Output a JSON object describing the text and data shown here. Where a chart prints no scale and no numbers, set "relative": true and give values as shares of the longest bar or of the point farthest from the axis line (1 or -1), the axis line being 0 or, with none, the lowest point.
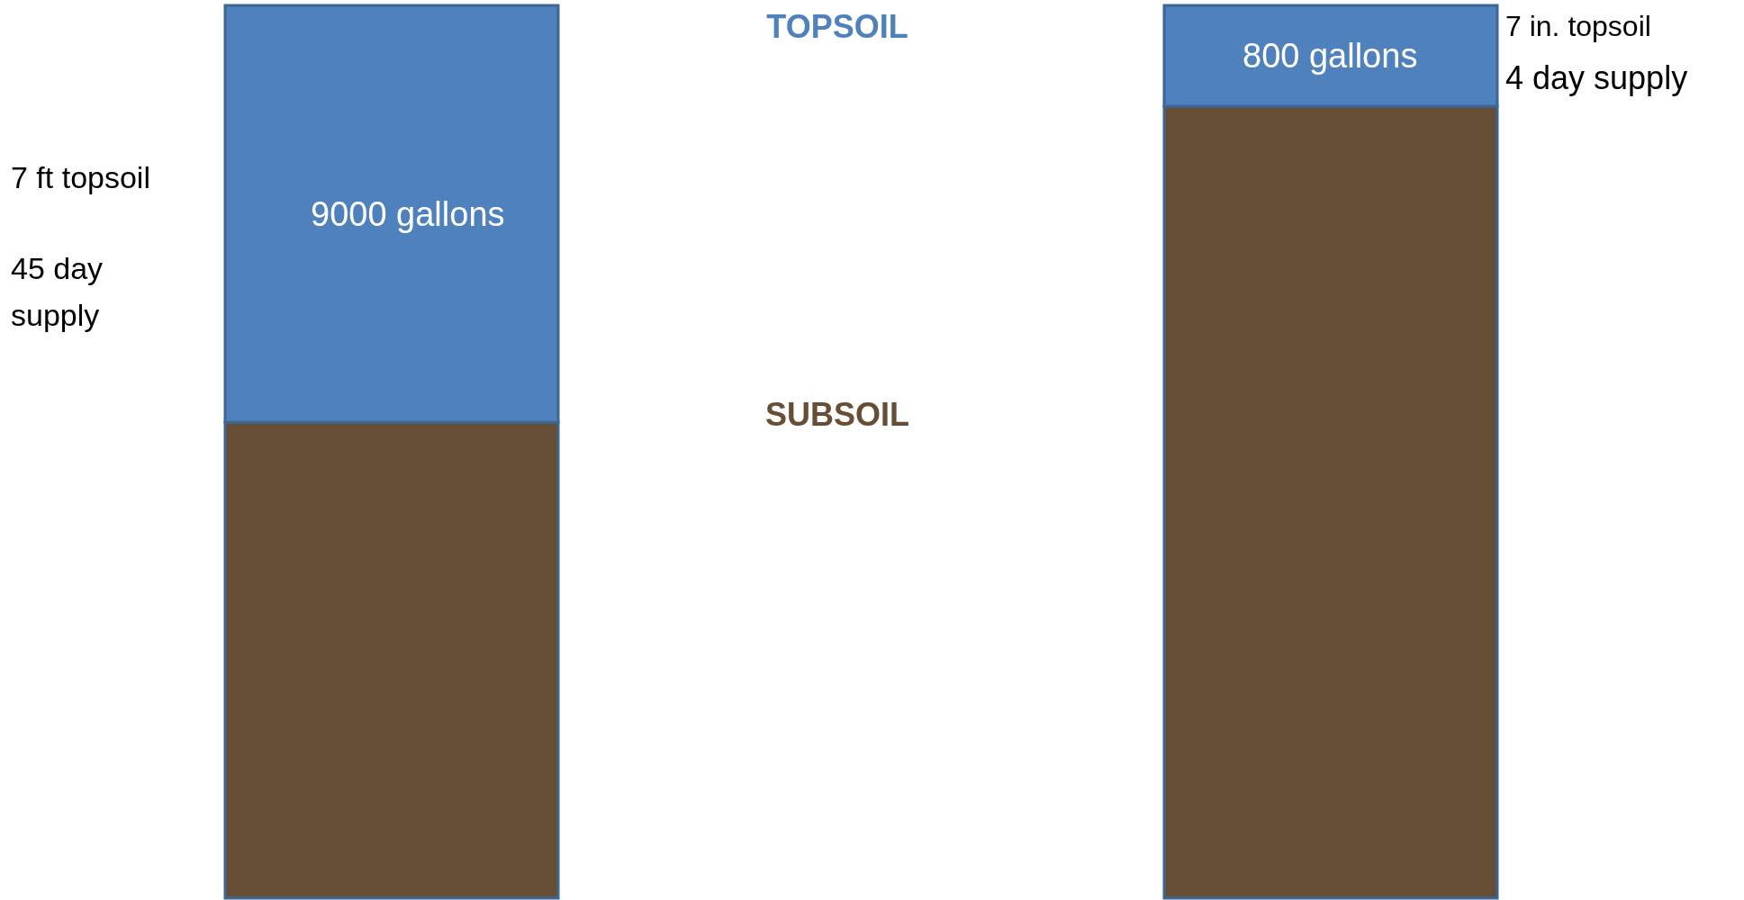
{
  "chart_data": {
    "type": "bar",
    "stacked": true,
    "relative": true,
    "categories": [
      null,
      null
    ],
    "series": [
      {
        "name": "SUBSOIL",
        "color": "#654e33",
        "values": [
          0.533,
          0.887
        ]
      },
      {
        "name": "TOPSOIL",
        "color": "#4f81bd",
        "values": [
          0.467,
          0.113
        ]
      }
    ],
    "annotations": [
      "7 ft topsoil",
      "45 day supply",
      "7 in. topsoil",
      "4 day supply",
      "9000 gallons",
      "800 gallons"
    ]
  }
}
